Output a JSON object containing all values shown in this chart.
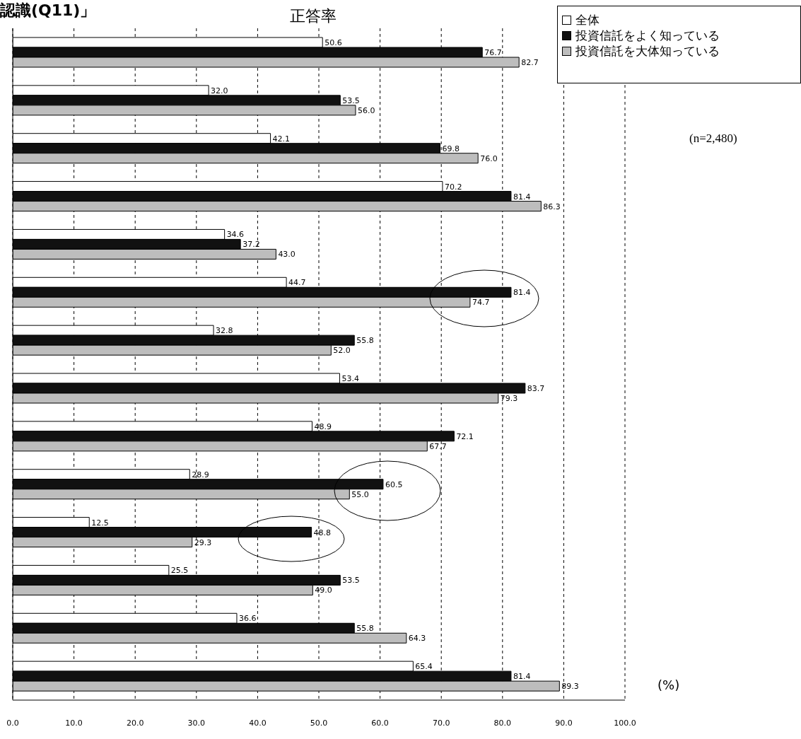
{
  "chart_data": {
    "type": "bar",
    "orientation": "horizontal",
    "title": "認識(Q11)」",
    "subtitle": "正答率",
    "categories": [
      null,
      null,
      null,
      null,
      null,
      null,
      null,
      null,
      null,
      null,
      null,
      null,
      null,
      null
    ],
    "series": [
      {
        "name": "全体",
        "color": "#ffffff",
        "values": [
          50.6,
          32.0,
          42.1,
          70.2,
          34.6,
          44.7,
          32.8,
          53.4,
          48.9,
          28.9,
          12.5,
          25.5,
          36.6,
          65.4
        ],
        "value_labels": [
          "50.6",
          "32.0",
          "42.1",
          "70.2",
          "34.6",
          "44.7",
          "32.8",
          "53.4",
          "48.9",
          "28.9",
          "12.5",
          "25.5",
          "36.6",
          "65.4"
        ]
      },
      {
        "name": "投資信託をよく知っている",
        "color": "#111111",
        "values": [
          76.7,
          53.5,
          69.8,
          81.4,
          37.2,
          81.4,
          55.8,
          83.7,
          72.1,
          60.5,
          48.8,
          53.5,
          55.8,
          81.4
        ],
        "value_labels": [
          "76.7",
          "53.5",
          "69.8",
          "81.4",
          "37.2",
          "81.4",
          "55.8",
          "83.7",
          "72.1",
          "60.5",
          "48.8",
          "53.5",
          "55.8",
          "81.4"
        ]
      },
      {
        "name": "投資信託を大体知っている",
        "color": "#bdbdbd",
        "values": [
          82.7,
          56.0,
          76.0,
          86.3,
          43.0,
          74.7,
          52.0,
          79.3,
          67.7,
          55.0,
          29.3,
          49.0,
          64.3,
          89.3
        ],
        "value_labels": [
          "82.7",
          "56.0",
          "76.0",
          "86.3",
          "43.0",
          "74.7",
          "52.0",
          "79.3",
          "67.7",
          "55.0",
          "29.3",
          "49.0",
          "64.3",
          "89.3"
        ]
      }
    ],
    "xlim": [
      0,
      100
    ],
    "xticks": [
      {
        "value": 0,
        "label": "0.0"
      },
      {
        "value": 10,
        "label": "10.0"
      },
      {
        "value": 20,
        "label": "20.0"
      },
      {
        "value": 30,
        "label": "30.0"
      },
      {
        "value": 40,
        "label": "40.0"
      },
      {
        "value": 50,
        "label": "50.0"
      },
      {
        "value": 60,
        "label": "60.0"
      },
      {
        "value": 70,
        "label": "70.0"
      },
      {
        "value": 80,
        "label": "80.0"
      },
      {
        "value": 90,
        "label": "90.0"
      },
      {
        "value": 100,
        "label": "100.0"
      }
    ],
    "grid": "x",
    "legend": "top right",
    "annotations": [
      "(n=2,480)",
      "(%)"
    ]
  }
}
